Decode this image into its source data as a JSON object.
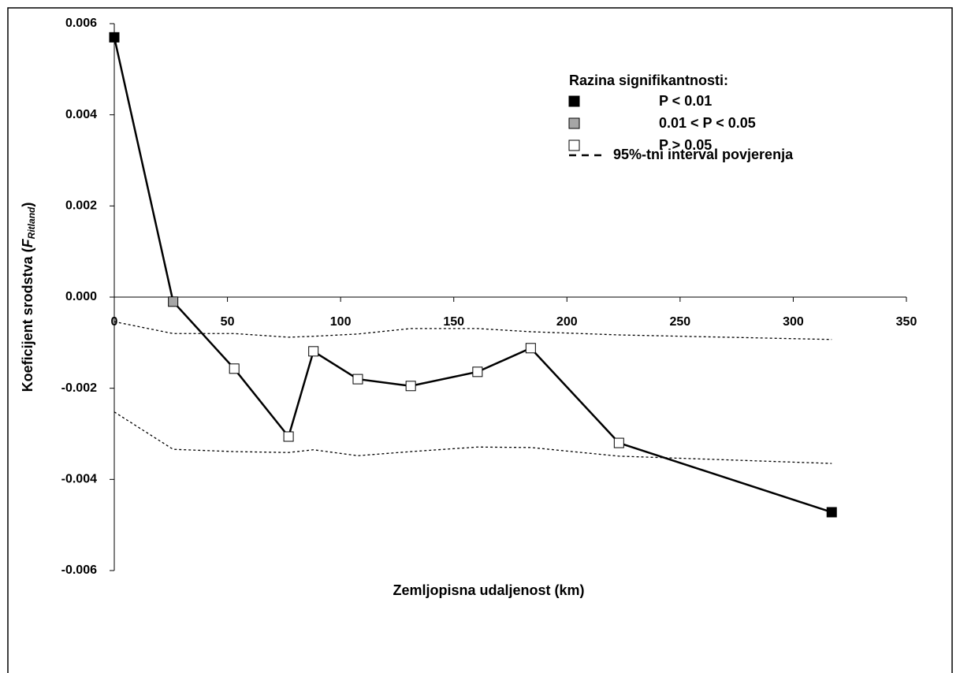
{
  "chart_data": {
    "type": "line",
    "xlabel": "Zemljopisna udaljenost (km)",
    "ylabel": [
      "Koeficijent srodstva (",
      "F",
      "Ritland",
      ")"
    ],
    "x": [
      0,
      26,
      53,
      77,
      88,
      107.6,
      131,
      160.5,
      184,
      223,
      317
    ],
    "values": [
      0.0057,
      -0.0001,
      -0.00157,
      -0.00306,
      -0.00119,
      -0.0018,
      -0.00195,
      -0.00164,
      -0.00112,
      -0.0032,
      -0.00472
    ],
    "point_colors": [
      "#000000",
      "#a6a6a6",
      "#ffffff",
      "#ffffff",
      "#ffffff",
      "#ffffff",
      "#ffffff",
      "#ffffff",
      "#ffffff",
      "#ffffff",
      "#000000"
    ],
    "color": "#000000",
    "confidence_interval": {
      "name": "95%-tni interval povjerenja",
      "upper": [
        -0.00054,
        -0.0008,
        -0.0008,
        -0.00088,
        -0.00086,
        -0.00081,
        -0.00069,
        -0.00069,
        -0.00076,
        -0.00083,
        -0.00093
      ],
      "lower": [
        -0.00252,
        -0.00334,
        -0.00339,
        -0.00341,
        -0.00335,
        -0.00348,
        -0.00339,
        -0.00329,
        -0.0033,
        -0.00349,
        -0.00365
      ]
    },
    "legend": {
      "title": "Razina signifikantnosti:",
      "entries": [
        {
          "name": "P < 0.01",
          "color": "#000000"
        },
        {
          "name": "0.01 < P < 0.05",
          "color": "#a6a6a6"
        },
        {
          "name": "P > 0.05",
          "color": "#ffffff"
        }
      ]
    },
    "xlim": [
      0,
      350
    ],
    "xticks": [
      0,
      50,
      100,
      150,
      200,
      250,
      300,
      350
    ],
    "ylim": [
      -0.006,
      0.006
    ],
    "yticks": [
      -0.006,
      -0.004,
      -0.002,
      {
        "value": 0,
        "label": "0.000"
      },
      0.002,
      0.004,
      0.006
    ]
  }
}
